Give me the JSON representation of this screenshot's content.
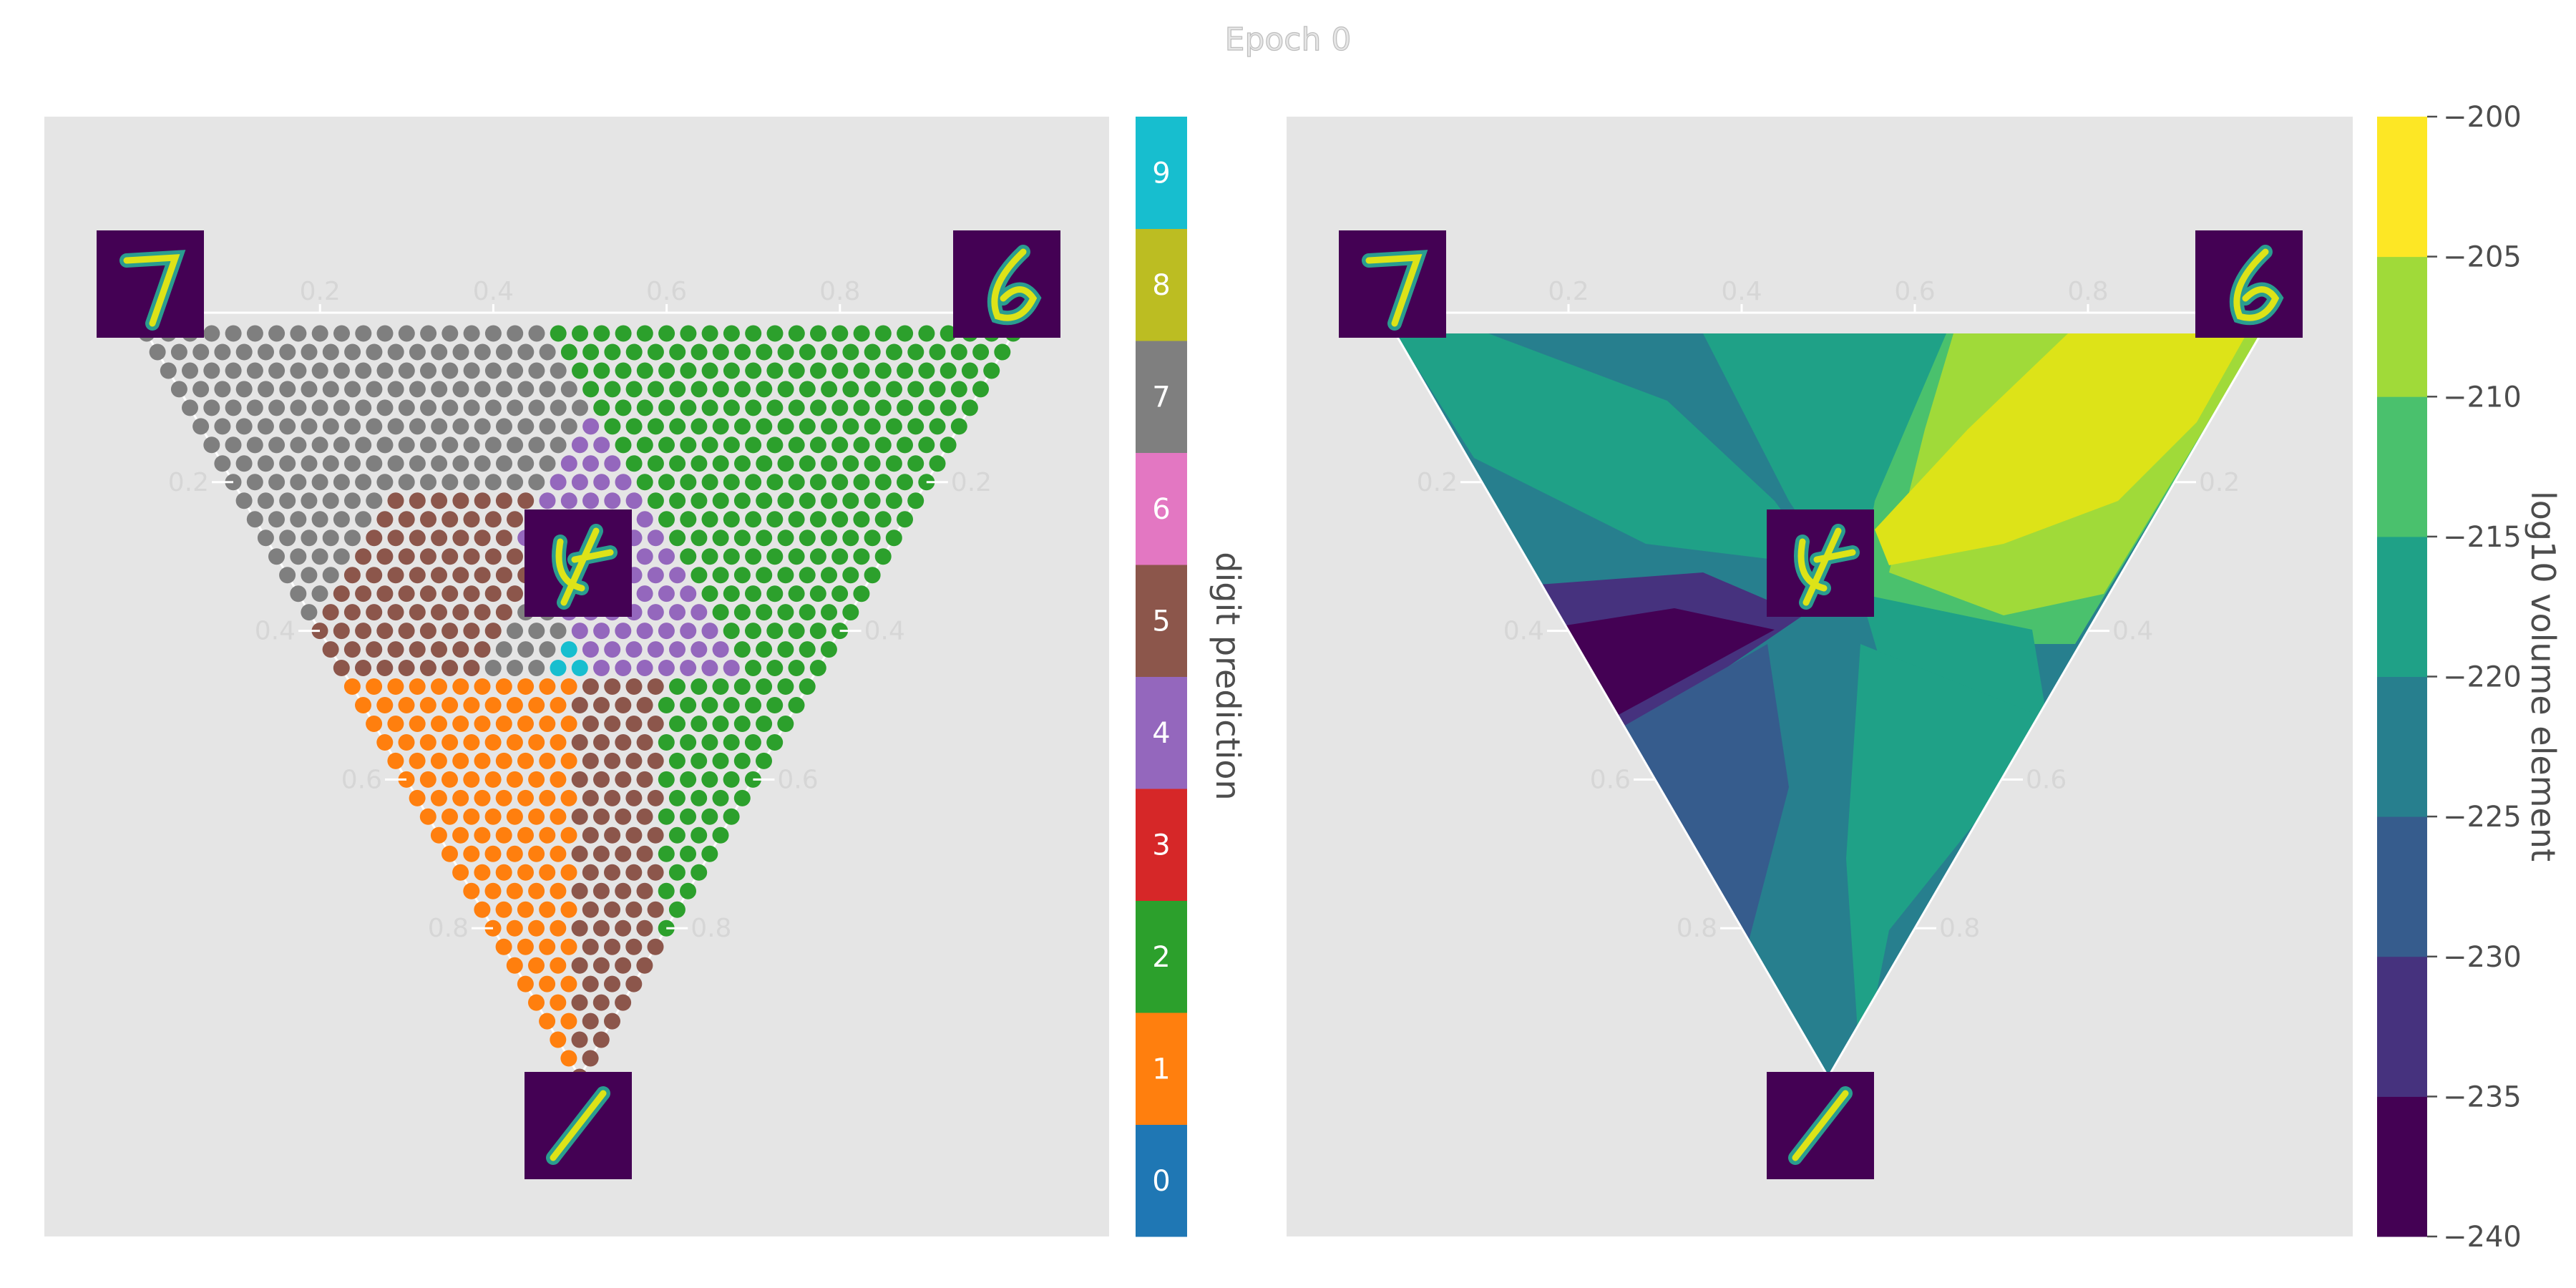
{
  "figure": {
    "title": "Epoch 0"
  },
  "chart_data": [
    {
      "type": "scatter",
      "panel": "digit-prediction-simplex",
      "description_kind": "ternary",
      "corner_images": [
        "mnist-digit-7",
        "mnist-digit-6",
        "mnist-digit-1"
      ],
      "center_image": "mnist-average-blend",
      "axis_ticks": [
        "0.2",
        "0.4",
        "0.6",
        "0.8"
      ],
      "colorbar": {
        "label": "digit prediction",
        "ticks": [
          "0",
          "1",
          "2",
          "3",
          "4",
          "5",
          "6",
          "7",
          "8",
          "9"
        ],
        "colors": [
          "#1f77b4",
          "#ff7f0e",
          "#2ca02c",
          "#d62728",
          "#9467bd",
          "#8c564b",
          "#e377c2",
          "#7f7f7f",
          "#bcbd22",
          "#17becf"
        ]
      },
      "grid": true
    },
    {
      "type": "heatmap",
      "panel": "volume-element-simplex",
      "corner_images": [
        "mnist-digit-7",
        "mnist-digit-6",
        "mnist-digit-1"
      ],
      "center_image": "mnist-average-blend",
      "axis_ticks": [
        "0.2",
        "0.4",
        "0.6",
        "0.8"
      ],
      "colorbar": {
        "label": "log10 volume element",
        "ticks": [
          "−200",
          "−205",
          "−210",
          "−215",
          "−220",
          "−225",
          "−230",
          "−235",
          "−240"
        ],
        "range": [
          -240,
          -200
        ],
        "colors": [
          "#440154",
          "#46327e",
          "#365c8d",
          "#277f8e",
          "#1fa187",
          "#4ac16d",
          "#a0da39",
          "#fde725"
        ]
      },
      "grid": true
    }
  ]
}
